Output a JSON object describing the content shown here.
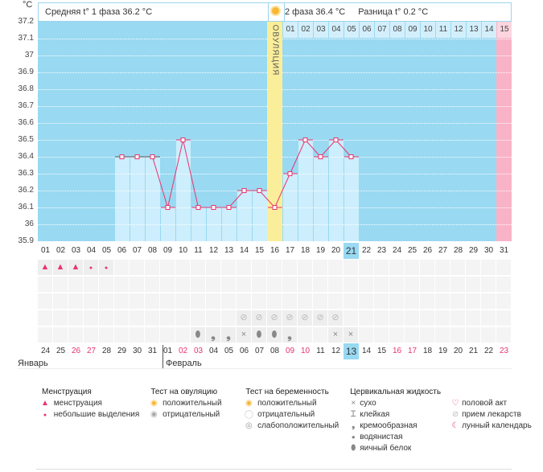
{
  "unit": "°C",
  "header": {
    "phase1": "Средняя t° 1 фаза 36.2 °C",
    "phase2": "2 фаза 36.4 °C",
    "diff": "Разница t° 0.2 °C",
    "ovulation_label": "ОВУЛЯЦИЯ"
  },
  "colors": {
    "plot_bg": "#99d9f2",
    "bar": "#cdeefc",
    "ovulation": "#fbee9a",
    "cycle_end": "#f9b3c6",
    "line": "#e8336e",
    "highlight": "#99d9f2"
  },
  "chart_data": {
    "type": "line",
    "ylabel": "°C",
    "ylim": [
      35.9,
      37.2
    ],
    "yticks": [
      "37.2",
      "37.1",
      "37",
      "36.9",
      "36.8",
      "36.7",
      "36.6",
      "36.5",
      "36.4",
      "36.3",
      "36.2",
      "36.1",
      "36",
      "35.9"
    ],
    "x": [
      "01",
      "02",
      "03",
      "04",
      "05",
      "06",
      "07",
      "08",
      "09",
      "10",
      "11",
      "12",
      "13",
      "14",
      "15",
      "16",
      "17",
      "18",
      "19",
      "20",
      "21",
      "22",
      "23",
      "24",
      "25",
      "26",
      "27",
      "28",
      "29",
      "30",
      "31"
    ],
    "temps": [
      null,
      null,
      null,
      null,
      null,
      36.4,
      36.4,
      36.4,
      36.1,
      36.5,
      36.1,
      36.1,
      36.1,
      36.2,
      36.2,
      36.1,
      36.3,
      36.5,
      36.4,
      36.5,
      36.4,
      null,
      null,
      null,
      null,
      null,
      null,
      null,
      null,
      null,
      null
    ],
    "ovulation_day": 16,
    "current_day": 21
  },
  "phase2_days": [
    "01",
    "02",
    "03",
    "04",
    "05",
    "06",
    "07",
    "08",
    "09",
    "10",
    "11",
    "12",
    "13",
    "14",
    "15"
  ],
  "dates": [
    "24",
    "25",
    "26",
    "27",
    "28",
    "29",
    "30",
    "31",
    "01",
    "02",
    "03",
    "04",
    "05",
    "06",
    "07",
    "08",
    "09",
    "10",
    "11",
    "12",
    "13",
    "14",
    "15",
    "16",
    "17",
    "18",
    "19",
    "20",
    "21",
    "22",
    "23"
  ],
  "red_dates": [
    2,
    3,
    9,
    10,
    16,
    17,
    23,
    24,
    30
  ],
  "months": {
    "jan": "Январь",
    "feb": "Февраль"
  },
  "marks": {
    "menstruation": [
      "heavy",
      "heavy",
      "heavy",
      "light",
      "light"
    ],
    "medication_days": [
      14,
      15,
      16,
      17,
      18,
      19,
      20
    ],
    "fluid": {
      "11": "egg",
      "12": "creamy",
      "13": "creamy",
      "14": "dry",
      "15": "watery",
      "16": "watery",
      "17": "creamy",
      "20": "dry",
      "21": "dry"
    }
  },
  "legend": {
    "menstruation": {
      "title": "Менструация",
      "items": [
        "менструация",
        "небольшие выделения"
      ]
    },
    "ovulation_test": {
      "title": "Тест на овуляцию",
      "items": [
        "положительный",
        "отрицательный"
      ]
    },
    "pregnancy_test": {
      "title": "Тест на беременность",
      "items": [
        "положительный",
        "отрицательный",
        "слабоположительный"
      ]
    },
    "cervical": {
      "title": "Цервикальная жидкость",
      "items": [
        "сухо",
        "клейкая",
        "кремообразная",
        "водянистая",
        "яичный белок"
      ]
    },
    "other": {
      "items": [
        "половой акт",
        "прием лекарств",
        "лунный календарь"
      ]
    }
  }
}
